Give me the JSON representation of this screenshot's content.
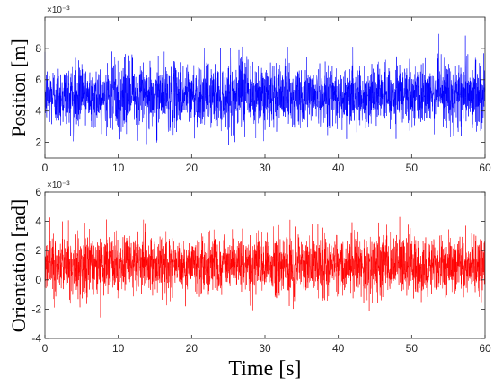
{
  "chart_data": [
    {
      "type": "line",
      "ylabel": "Position [m]",
      "xlabel": "",
      "exponent_label": "×10⁻³",
      "xlim": [
        0,
        60
      ],
      "ylim": [
        1,
        10
      ],
      "xticks": [
        0,
        10,
        20,
        30,
        40,
        50,
        60
      ],
      "yticks": [
        2,
        4,
        6,
        8
      ],
      "grid": false,
      "series": [
        {
          "color": "#0000ff",
          "mean": 5.0,
          "std": 1.0,
          "min": 1.8,
          "max": 9.1,
          "samples": 3000
        }
      ]
    },
    {
      "type": "line",
      "ylabel": "Orientation [rad]",
      "xlabel": "Time [s]",
      "exponent_label": "×10⁻³",
      "xlim": [
        0,
        60
      ],
      "ylim": [
        -4,
        6
      ],
      "xticks": [
        0,
        10,
        20,
        30,
        40,
        50,
        60
      ],
      "yticks": [
        -4,
        -2,
        0,
        2,
        4,
        6
      ],
      "grid": false,
      "series": [
        {
          "color": "#ff0000",
          "mean": 1.0,
          "std": 1.0,
          "min": -2.8,
          "max": 4.5,
          "samples": 3000
        }
      ]
    }
  ],
  "colors": {
    "axis": "#262626",
    "background": "#ffffff"
  }
}
